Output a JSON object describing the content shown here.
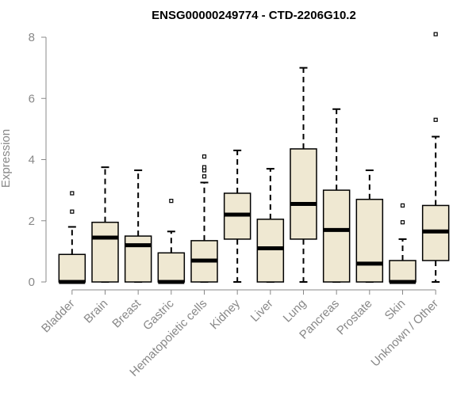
{
  "chart_data": {
    "type": "boxplot",
    "title": "ENSG00000249774 - CTD-2206G10.2",
    "xlabel": "",
    "ylabel": "Expression",
    "ylim": [
      0,
      8
    ],
    "yticks": [
      0,
      2,
      4,
      6,
      8
    ],
    "grid": false,
    "box_fill": "#EFE8D2",
    "box_stroke": "#000000",
    "axis_color": "#888888",
    "categories": [
      "Bladder",
      "Brain",
      "Breast",
      "Gastric",
      "Hematopoietic cells",
      "Kidney",
      "Liver",
      "Lung",
      "Pancreas",
      "Prostate",
      "Skin",
      "Unknown / Other"
    ],
    "boxes": [
      {
        "whisker_low": 0,
        "q1": 0,
        "median": 0,
        "q3": 0.9,
        "whisker_high": 1.8,
        "outliers": [
          2.3,
          2.9
        ]
      },
      {
        "whisker_low": 0,
        "q1": 0,
        "median": 1.45,
        "q3": 1.95,
        "whisker_high": 3.75,
        "outliers": []
      },
      {
        "whisker_low": 0,
        "q1": 0,
        "median": 1.2,
        "q3": 1.5,
        "whisker_high": 3.65,
        "outliers": []
      },
      {
        "whisker_low": 0,
        "q1": 0,
        "median": 0,
        "q3": 0.95,
        "whisker_high": 1.65,
        "outliers": [
          2.65
        ]
      },
      {
        "whisker_low": 0,
        "q1": 0,
        "median": 0.7,
        "q3": 1.35,
        "whisker_high": 3.25,
        "outliers": [
          3.45,
          3.65,
          3.75,
          4.1
        ]
      },
      {
        "whisker_low": 0,
        "q1": 1.4,
        "median": 2.2,
        "q3": 2.9,
        "whisker_high": 4.3,
        "outliers": []
      },
      {
        "whisker_low": 0,
        "q1": 0,
        "median": 1.1,
        "q3": 2.05,
        "whisker_high": 3.7,
        "outliers": []
      },
      {
        "whisker_low": 0,
        "q1": 1.4,
        "median": 2.55,
        "q3": 4.35,
        "whisker_high": 7.0,
        "outliers": []
      },
      {
        "whisker_low": 0,
        "q1": 0,
        "median": 1.7,
        "q3": 3.0,
        "whisker_high": 5.65,
        "outliers": []
      },
      {
        "whisker_low": 0,
        "q1": 0,
        "median": 0.6,
        "q3": 2.7,
        "whisker_high": 3.65,
        "outliers": []
      },
      {
        "whisker_low": 0,
        "q1": 0,
        "median": 0,
        "q3": 0.7,
        "whisker_high": 1.4,
        "outliers": [
          1.95,
          2.5
        ]
      },
      {
        "whisker_low": 0,
        "q1": 0.7,
        "median": 1.65,
        "q3": 2.5,
        "whisker_high": 4.75,
        "outliers": [
          5.3,
          8.1
        ]
      }
    ]
  }
}
